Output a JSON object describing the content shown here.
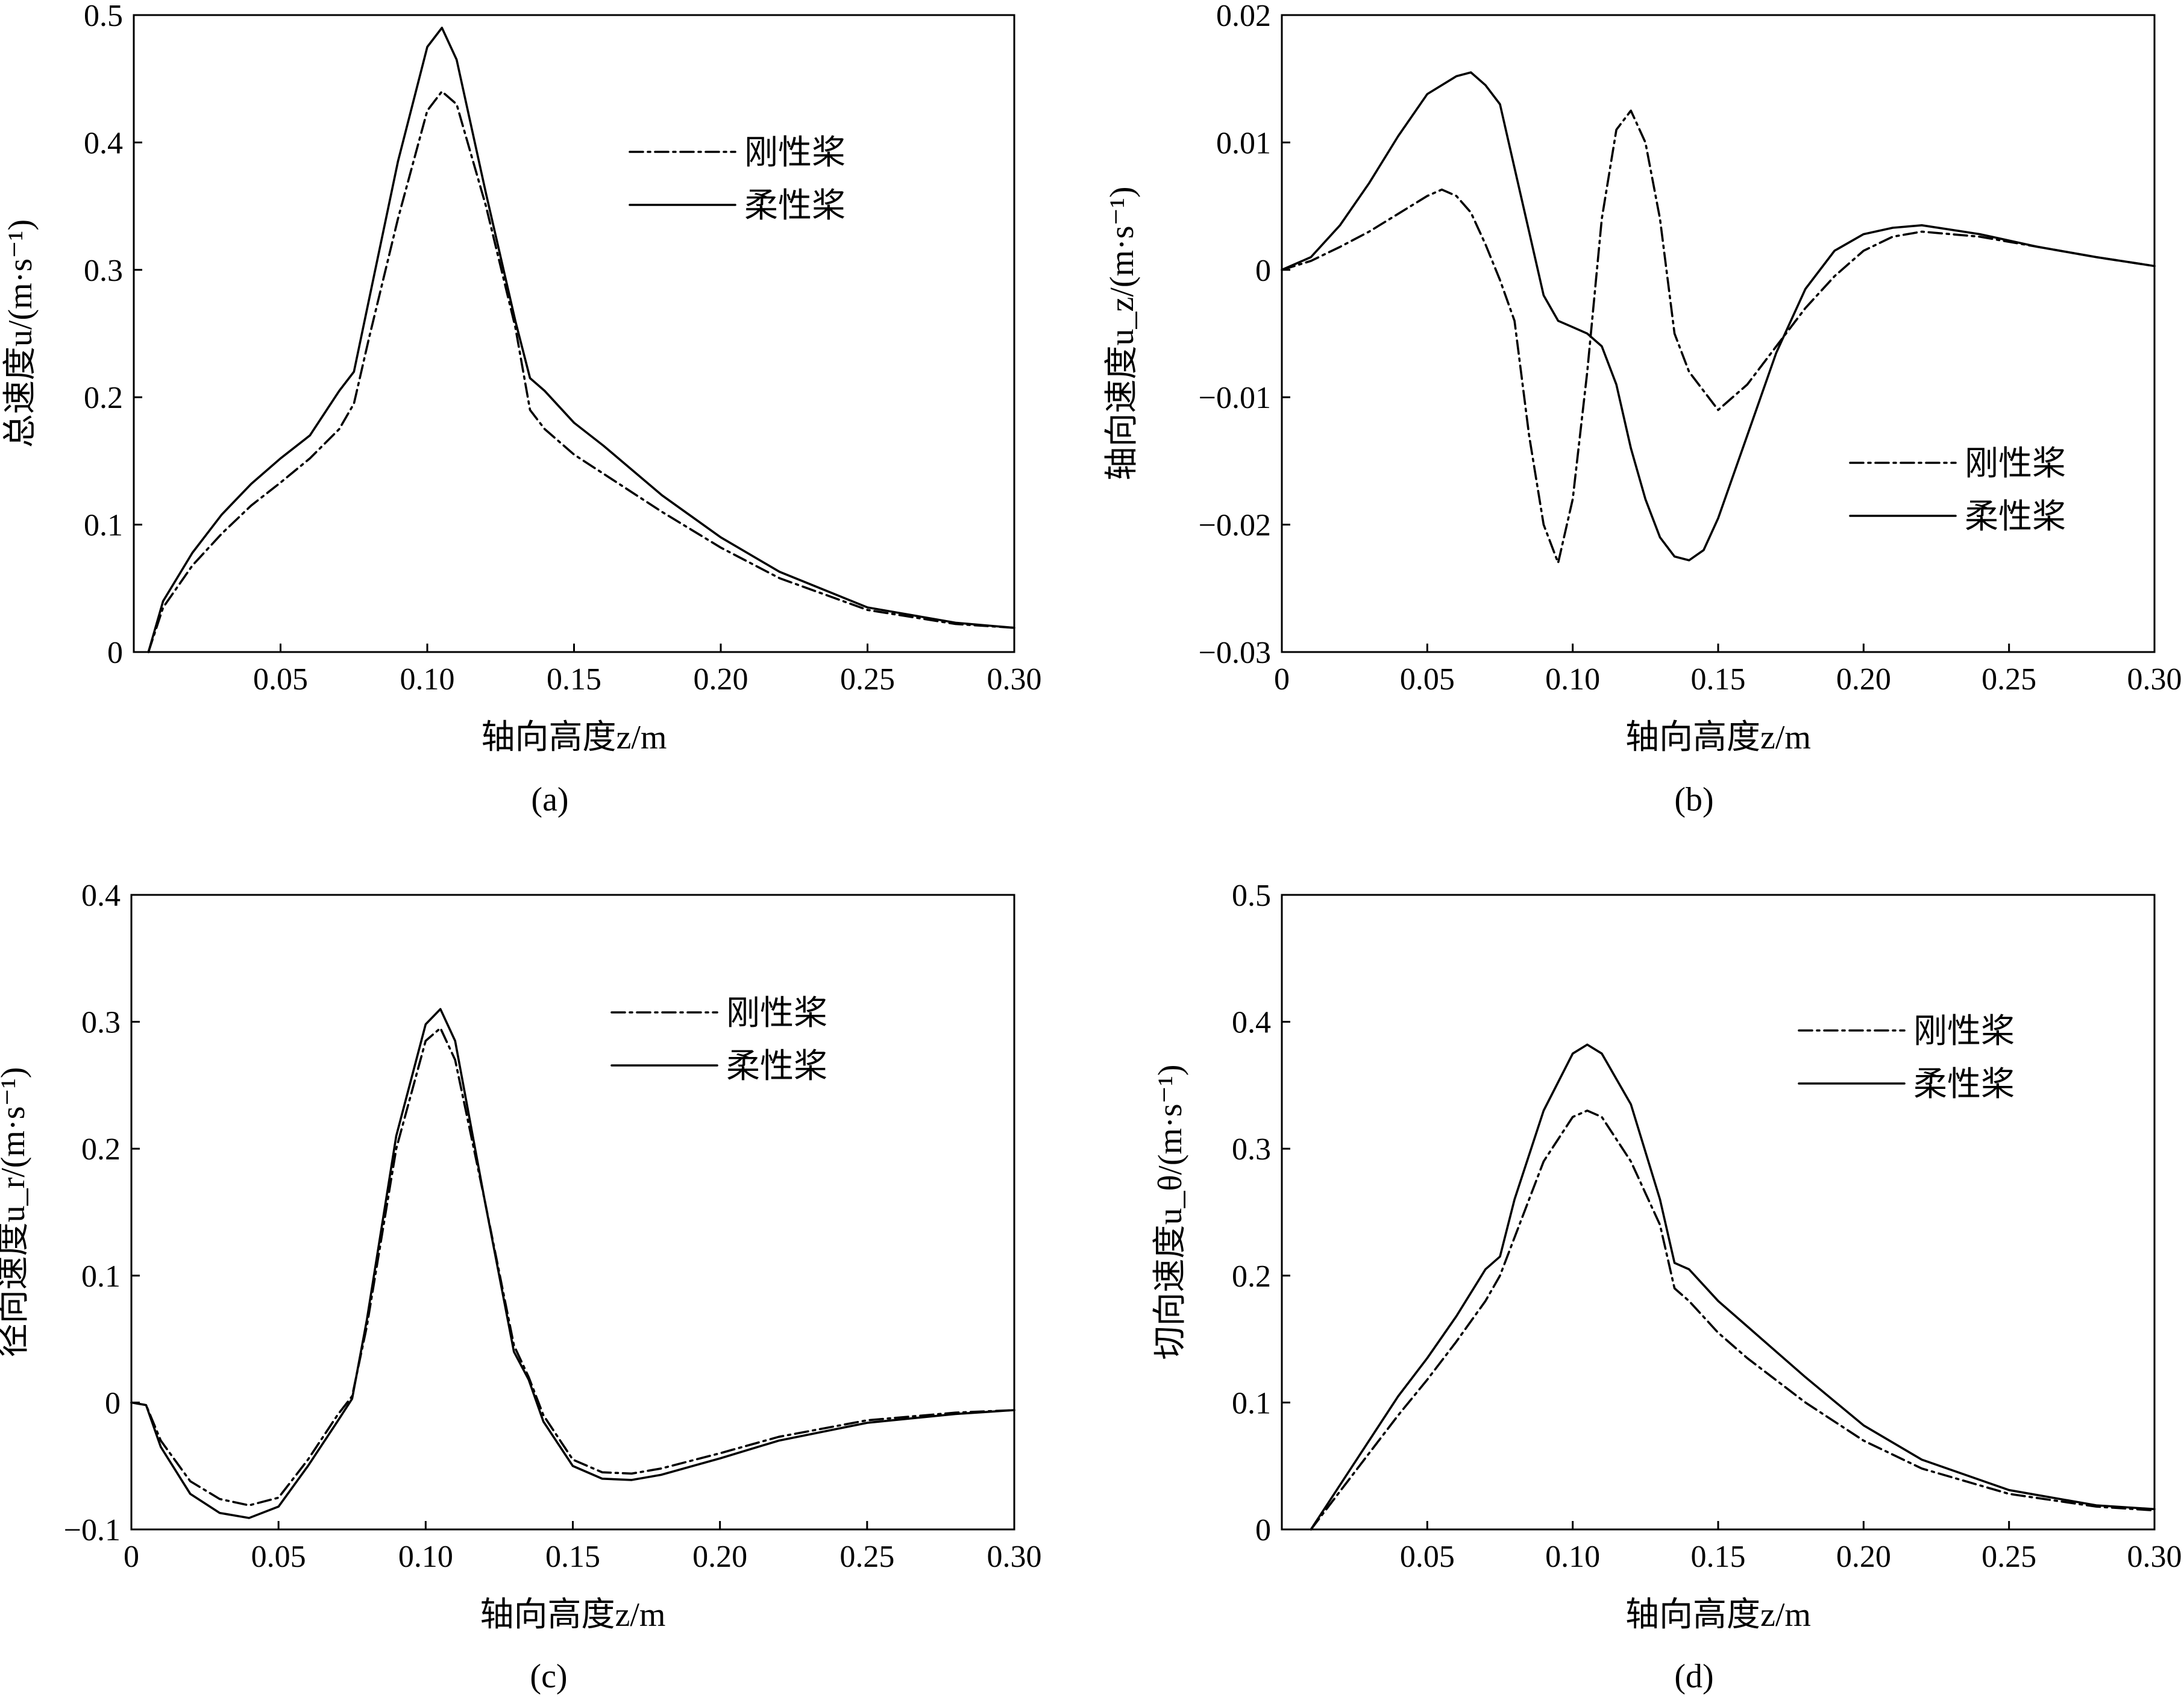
{
  "legend": {
    "rigid": "刚性桨",
    "flexible": "柔性桨"
  },
  "chart_data": [
    {
      "type": "line",
      "panel_label": "(a)",
      "ylabel": "总速度u/(m·s⁻¹)",
      "xlabel": "轴向高度z/m",
      "xlim": [
        0,
        0.3
      ],
      "ylim": [
        0,
        0.5
      ],
      "xticks": [
        {
          "v": 0.05,
          "label": "0.05"
        },
        {
          "v": 0.1,
          "label": "0.10"
        },
        {
          "v": 0.15,
          "label": "0.15"
        },
        {
          "v": 0.2,
          "label": "0.20"
        },
        {
          "v": 0.25,
          "label": "0.25"
        },
        {
          "v": 0.3,
          "label": "0.30"
        }
      ],
      "yticks": [
        {
          "v": 0,
          "label": "0"
        },
        {
          "v": 0.1,
          "label": "0.1"
        },
        {
          "v": 0.2,
          "label": "0.2"
        },
        {
          "v": 0.3,
          "label": "0.3"
        },
        {
          "v": 0.4,
          "label": "0.4"
        },
        {
          "v": 0.5,
          "label": "0.5"
        }
      ],
      "legend_position": "top-right",
      "series": [
        {
          "key": "rigid",
          "name": "刚性桨",
          "style": "dash-dot",
          "x": [
            0.005,
            0.01,
            0.02,
            0.03,
            0.04,
            0.05,
            0.06,
            0.07,
            0.075,
            0.08,
            0.09,
            0.1,
            0.105,
            0.11,
            0.12,
            0.13,
            0.135,
            0.14,
            0.15,
            0.16,
            0.18,
            0.2,
            0.22,
            0.25,
            0.28,
            0.3
          ],
          "y": [
            0,
            0.035,
            0.068,
            0.093,
            0.115,
            0.133,
            0.152,
            0.175,
            0.195,
            0.245,
            0.34,
            0.425,
            0.44,
            0.43,
            0.35,
            0.255,
            0.19,
            0.175,
            0.155,
            0.14,
            0.11,
            0.082,
            0.058,
            0.033,
            0.022,
            0.019
          ]
        },
        {
          "key": "flexible",
          "name": "柔性桨",
          "style": "solid",
          "x": [
            0.005,
            0.01,
            0.02,
            0.03,
            0.04,
            0.05,
            0.06,
            0.07,
            0.075,
            0.08,
            0.09,
            0.1,
            0.105,
            0.11,
            0.12,
            0.13,
            0.135,
            0.14,
            0.15,
            0.16,
            0.18,
            0.2,
            0.22,
            0.25,
            0.28,
            0.3
          ],
          "y": [
            0,
            0.04,
            0.078,
            0.108,
            0.132,
            0.152,
            0.17,
            0.205,
            0.22,
            0.275,
            0.385,
            0.475,
            0.49,
            0.465,
            0.36,
            0.26,
            0.215,
            0.205,
            0.18,
            0.162,
            0.123,
            0.09,
            0.063,
            0.035,
            0.023,
            0.019
          ]
        }
      ]
    },
    {
      "type": "line",
      "panel_label": "(b)",
      "ylabel": "轴向速度u_z/(m·s⁻¹)",
      "xlabel": "轴向高度z/m",
      "xlim": [
        0,
        0.3
      ],
      "ylim": [
        -0.03,
        0.02
      ],
      "xticks": [
        {
          "v": 0,
          "label": "0"
        },
        {
          "v": 0.05,
          "label": "0.05"
        },
        {
          "v": 0.1,
          "label": "0.10"
        },
        {
          "v": 0.15,
          "label": "0.15"
        },
        {
          "v": 0.2,
          "label": "0.20"
        },
        {
          "v": 0.25,
          "label": "0.25"
        },
        {
          "v": 0.3,
          "label": "0.30"
        }
      ],
      "yticks": [
        {
          "v": -0.03,
          "label": "−0.03"
        },
        {
          "v": -0.02,
          "label": "−0.02"
        },
        {
          "v": -0.01,
          "label": "−0.01"
        },
        {
          "v": 0,
          "label": "0"
        },
        {
          "v": 0.01,
          "label": "0.01"
        },
        {
          "v": 0.02,
          "label": "0.02"
        }
      ],
      "legend_position": "middle-right",
      "series": [
        {
          "key": "rigid",
          "name": "刚性桨",
          "style": "dash-dot",
          "x": [
            0,
            0.01,
            0.02,
            0.03,
            0.04,
            0.05,
            0.055,
            0.06,
            0.065,
            0.07,
            0.075,
            0.08,
            0.085,
            0.09,
            0.095,
            0.1,
            0.105,
            0.11,
            0.115,
            0.12,
            0.125,
            0.13,
            0.135,
            0.14,
            0.15,
            0.16,
            0.17,
            0.18,
            0.19,
            0.2,
            0.21,
            0.22,
            0.24,
            0.26,
            0.28,
            0.3
          ],
          "y": [
            0,
            0.0007,
            0.0018,
            0.003,
            0.0044,
            0.0058,
            0.0063,
            0.0058,
            0.0045,
            0.002,
            -0.0008,
            -0.004,
            -0.013,
            -0.02,
            -0.023,
            -0.018,
            -0.008,
            0.004,
            0.011,
            0.0125,
            0.01,
            0.004,
            -0.005,
            -0.008,
            -0.011,
            -0.009,
            -0.006,
            -0.003,
            -0.0005,
            0.0015,
            0.0026,
            0.003,
            0.0026,
            0.0018,
            0.001,
            0.0003
          ]
        },
        {
          "key": "flexible",
          "name": "柔性桨",
          "style": "solid",
          "x": [
            0,
            0.01,
            0.02,
            0.03,
            0.04,
            0.05,
            0.06,
            0.065,
            0.07,
            0.075,
            0.08,
            0.085,
            0.09,
            0.095,
            0.1,
            0.105,
            0.11,
            0.115,
            0.12,
            0.125,
            0.13,
            0.135,
            0.14,
            0.145,
            0.15,
            0.16,
            0.17,
            0.18,
            0.19,
            0.2,
            0.21,
            0.22,
            0.24,
            0.26,
            0.28,
            0.3
          ],
          "y": [
            0,
            0.001,
            0.0035,
            0.0068,
            0.0105,
            0.0138,
            0.0152,
            0.0155,
            0.0145,
            0.013,
            0.008,
            0.003,
            -0.002,
            -0.004,
            -0.0045,
            -0.005,
            -0.006,
            -0.009,
            -0.014,
            -0.018,
            -0.021,
            -0.0225,
            -0.0228,
            -0.022,
            -0.0195,
            -0.013,
            -0.0065,
            -0.0015,
            0.0015,
            0.0028,
            0.0033,
            0.0035,
            0.0028,
            0.0018,
            0.001,
            0.0003
          ]
        }
      ]
    },
    {
      "type": "line",
      "panel_label": "(c)",
      "ylabel": "径向速度u_r/(m·s⁻¹)",
      "xlabel": "轴向高度z/m",
      "xlim": [
        0,
        0.3
      ],
      "ylim": [
        -0.1,
        0.4
      ],
      "xticks": [
        {
          "v": 0,
          "label": "0"
        },
        {
          "v": 0.05,
          "label": "0.05"
        },
        {
          "v": 0.1,
          "label": "0.10"
        },
        {
          "v": 0.15,
          "label": "0.15"
        },
        {
          "v": 0.2,
          "label": "0.20"
        },
        {
          "v": 0.25,
          "label": "0.25"
        },
        {
          "v": 0.3,
          "label": "0.30"
        }
      ],
      "yticks": [
        {
          "v": -0.1,
          "label": "−0.1"
        },
        {
          "v": 0,
          "label": "0"
        },
        {
          "v": 0.1,
          "label": "0.1"
        },
        {
          "v": 0.2,
          "label": "0.2"
        },
        {
          "v": 0.3,
          "label": "0.3"
        },
        {
          "v": 0.4,
          "label": "0.4"
        }
      ],
      "legend_position": "top-right",
      "series": [
        {
          "key": "rigid",
          "name": "刚性桨",
          "style": "dash-dot",
          "x": [
            0,
            0.005,
            0.01,
            0.02,
            0.03,
            0.04,
            0.05,
            0.06,
            0.07,
            0.075,
            0.08,
            0.09,
            0.1,
            0.105,
            0.11,
            0.12,
            0.13,
            0.135,
            0.14,
            0.15,
            0.16,
            0.17,
            0.18,
            0.2,
            0.22,
            0.25,
            0.28,
            0.3
          ],
          "y": [
            0,
            -0.002,
            -0.03,
            -0.062,
            -0.076,
            -0.081,
            -0.075,
            -0.045,
            -0.01,
            0.005,
            0.06,
            0.2,
            0.285,
            0.295,
            0.27,
            0.16,
            0.045,
            0.02,
            -0.01,
            -0.045,
            -0.055,
            -0.056,
            -0.052,
            -0.04,
            -0.027,
            -0.014,
            -0.008,
            -0.006
          ]
        },
        {
          "key": "flexible",
          "name": "柔性桨",
          "style": "solid",
          "x": [
            0,
            0.005,
            0.01,
            0.02,
            0.03,
            0.04,
            0.05,
            0.06,
            0.07,
            0.075,
            0.08,
            0.09,
            0.1,
            0.105,
            0.11,
            0.12,
            0.13,
            0.135,
            0.14,
            0.15,
            0.16,
            0.17,
            0.18,
            0.2,
            0.22,
            0.25,
            0.28,
            0.3
          ],
          "y": [
            0,
            -0.002,
            -0.035,
            -0.072,
            -0.087,
            -0.091,
            -0.082,
            -0.05,
            -0.015,
            0.003,
            0.065,
            0.21,
            0.298,
            0.31,
            0.285,
            0.16,
            0.04,
            0.018,
            -0.015,
            -0.05,
            -0.06,
            -0.061,
            -0.057,
            -0.044,
            -0.03,
            -0.016,
            -0.009,
            -0.006
          ]
        }
      ]
    },
    {
      "type": "line",
      "panel_label": "(d)",
      "ylabel": "切向速度u_θ/(m·s⁻¹)",
      "xlabel": "轴向高度z/m",
      "xlim": [
        0,
        0.3
      ],
      "ylim": [
        0,
        0.5
      ],
      "xticks": [
        {
          "v": 0.05,
          "label": "0.05"
        },
        {
          "v": 0.1,
          "label": "0.10"
        },
        {
          "v": 0.15,
          "label": "0.15"
        },
        {
          "v": 0.2,
          "label": "0.20"
        },
        {
          "v": 0.25,
          "label": "0.25"
        },
        {
          "v": 0.3,
          "label": "0.30"
        }
      ],
      "yticks": [
        {
          "v": 0,
          "label": "0"
        },
        {
          "v": 0.1,
          "label": "0.1"
        },
        {
          "v": 0.2,
          "label": "0.2"
        },
        {
          "v": 0.3,
          "label": "0.3"
        },
        {
          "v": 0.4,
          "label": "0.4"
        },
        {
          "v": 0.5,
          "label": "0.5"
        }
      ],
      "legend_position": "top-right",
      "series": [
        {
          "key": "rigid",
          "name": "刚性桨",
          "style": "dash-dot",
          "x": [
            0.01,
            0.02,
            0.03,
            0.04,
            0.05,
            0.06,
            0.07,
            0.075,
            0.08,
            0.09,
            0.1,
            0.105,
            0.11,
            0.12,
            0.13,
            0.135,
            0.14,
            0.15,
            0.16,
            0.18,
            0.2,
            0.22,
            0.25,
            0.28,
            0.3
          ],
          "y": [
            0,
            0.03,
            0.06,
            0.09,
            0.118,
            0.148,
            0.18,
            0.2,
            0.23,
            0.29,
            0.325,
            0.33,
            0.325,
            0.29,
            0.24,
            0.19,
            0.18,
            0.155,
            0.135,
            0.1,
            0.07,
            0.048,
            0.028,
            0.018,
            0.015
          ]
        },
        {
          "key": "flexible",
          "name": "柔性桨",
          "style": "solid",
          "x": [
            0.01,
            0.02,
            0.03,
            0.04,
            0.05,
            0.06,
            0.07,
            0.075,
            0.08,
            0.09,
            0.1,
            0.105,
            0.11,
            0.12,
            0.13,
            0.135,
            0.14,
            0.15,
            0.16,
            0.18,
            0.2,
            0.22,
            0.25,
            0.28,
            0.3
          ],
          "y": [
            0,
            0.035,
            0.07,
            0.105,
            0.135,
            0.168,
            0.205,
            0.215,
            0.26,
            0.33,
            0.375,
            0.382,
            0.375,
            0.335,
            0.26,
            0.21,
            0.205,
            0.18,
            0.16,
            0.12,
            0.082,
            0.055,
            0.031,
            0.019,
            0.016
          ]
        }
      ]
    }
  ]
}
